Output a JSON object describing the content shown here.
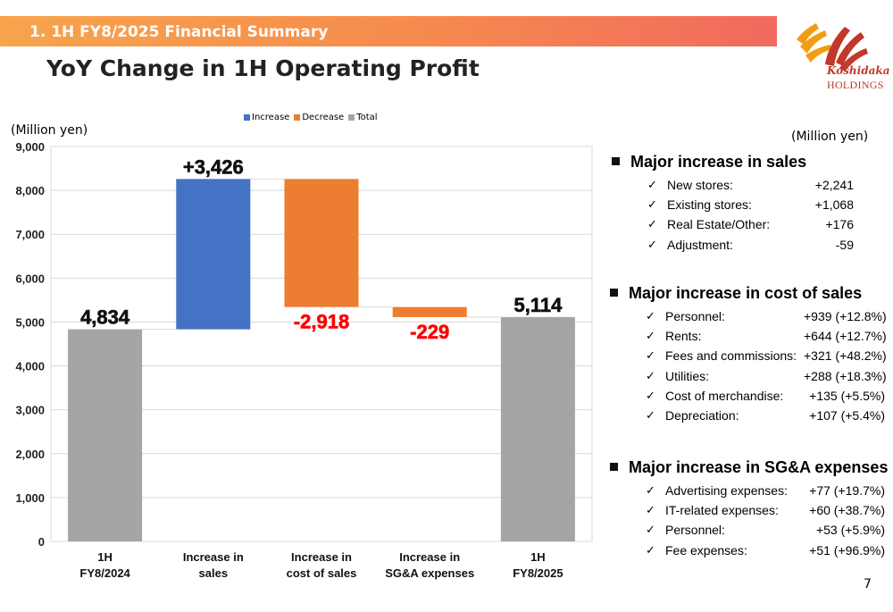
{
  "header": {
    "section": "1. 1H FY8/2025 Financial Summary",
    "title": "YoY Change in 1H Operating Profit",
    "logo_text": "Koshidaka",
    "logo_subtext": "HOLDINGS",
    "page_number": "7"
  },
  "units": {
    "left": "(Million yen)",
    "right": "(Million yen)"
  },
  "colors": {
    "increase": "#4472c4",
    "decrease": "#ed7d31",
    "total": "#a5a5a5",
    "negative_label": "#ff0000",
    "banner": "#f68a4e"
  },
  "chart_data": {
    "type": "bar",
    "subtype": "waterfall",
    "legend": [
      "Increase",
      "Decrease",
      "Total"
    ],
    "legend_position": "top",
    "categories": [
      "1H FY8/2024",
      "Increase in sales",
      "Increase in cost of sales",
      "Increase in SG&A expenses",
      "1H FY8/2025"
    ],
    "category_lines": [
      [
        "1H",
        "FY8/2024"
      ],
      [
        "Increase in",
        "sales"
      ],
      [
        "Increase in",
        "cost of sales"
      ],
      [
        "Increase in",
        "SG&A expenses"
      ],
      [
        "1H",
        "FY8/2025"
      ]
    ],
    "kinds": [
      "total",
      "increase",
      "decrease",
      "decrease",
      "total"
    ],
    "values": [
      4834,
      3426,
      -2918,
      -229,
      5114
    ],
    "data_labels": [
      "4,834",
      "+3,426",
      "-2,918",
      "-229",
      "5,114"
    ],
    "ylim": [
      0,
      9000
    ],
    "yticks": [
      "0",
      "1,000",
      "2,000",
      "3,000",
      "4,000",
      "5,000",
      "6,000",
      "7,000",
      "8,000",
      "9,000"
    ],
    "grid": true
  },
  "sections": [
    {
      "title": "Major increase in sales",
      "items": [
        {
          "label": "New stores:",
          "value": "+2,241"
        },
        {
          "label": "Existing stores:",
          "value": "+1,068"
        },
        {
          "label": "Real Estate/Other:",
          "value": "+176"
        },
        {
          "label": "Adjustment:",
          "value": "-59"
        }
      ]
    },
    {
      "title": "Major increase in cost of sales",
      "items": [
        {
          "label": "Personnel:",
          "value": "+939 (+12.8%)"
        },
        {
          "label": "Rents:",
          "value": "+644 (+12.7%)"
        },
        {
          "label": "Fees and commissions:",
          "value": "+321 (+48.2%)"
        },
        {
          "label": "Utilities:",
          "value": "+288 (+18.3%)"
        },
        {
          "label": "Cost of merchandise:",
          "value": "+135 (+5.5%)"
        },
        {
          "label": "Depreciation:",
          "value": "+107 (+5.4%)"
        }
      ]
    },
    {
      "title": "Major increase in SG&A expenses",
      "items": [
        {
          "label": "Advertising expenses:",
          "value": "+77 (+19.7%)"
        },
        {
          "label": "IT-related expenses:",
          "value": "+60 (+38.7%)"
        },
        {
          "label": "Personnel:",
          "value": "+53 (+5.9%)"
        },
        {
          "label": "Fee expenses:",
          "value": "+51 (+96.9%)"
        }
      ]
    }
  ]
}
